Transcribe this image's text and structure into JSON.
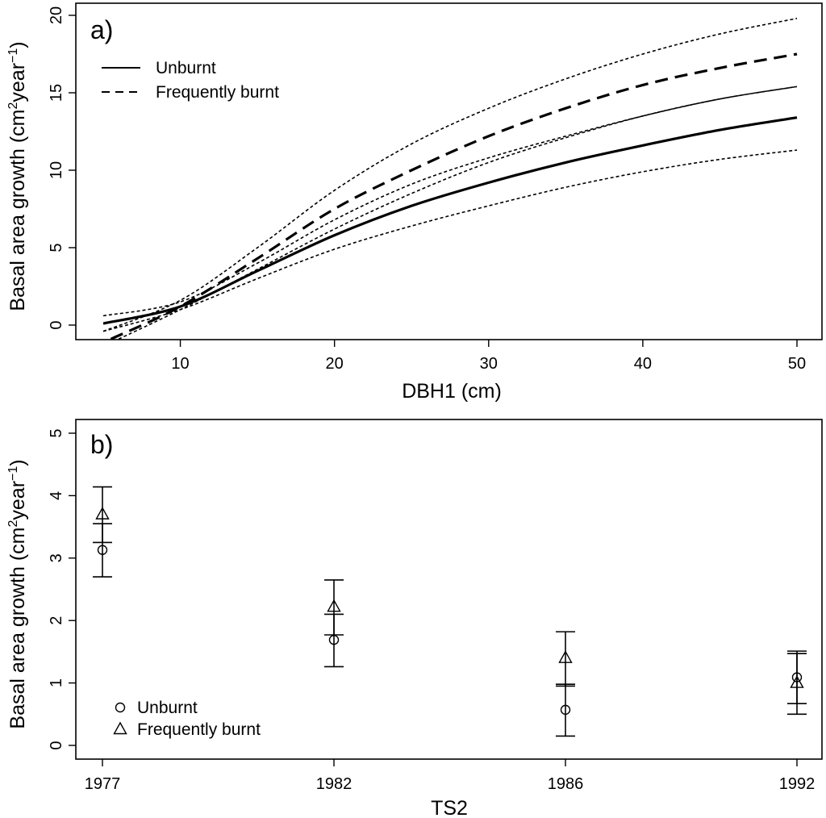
{
  "chart_data": [
    {
      "type": "line",
      "panel_label": "a)",
      "xlabel": "DBH1 (cm)",
      "ylabel": {
        "prefix": "Basal area growth (cm",
        "sup1": "2",
        "mid": "year",
        "sup2": "−1",
        "suffix": ")"
      },
      "xlim": [
        3.5,
        52
      ],
      "ylim": [
        -0.8,
        20.5
      ],
      "xticks": [
        10,
        20,
        30,
        40,
        50
      ],
      "yticks": [
        0,
        5,
        10,
        15,
        20
      ],
      "legend": {
        "position": "top-left",
        "entries": [
          {
            "label": "Unburnt",
            "style": "solid"
          },
          {
            "label": "Frequently burnt",
            "style": "dashed"
          }
        ]
      },
      "series": [
        {
          "name": "Unburnt",
          "role": "fit",
          "style": "solid",
          "x": [
            5,
            10,
            15,
            20,
            25,
            30,
            35,
            40,
            45,
            50
          ],
          "y": [
            0.1,
            1.2,
            3.5,
            5.8,
            7.7,
            9.2,
            10.5,
            11.6,
            12.6,
            13.4
          ]
        },
        {
          "name": "Unburnt lower CI",
          "role": "ci",
          "style": "dotted",
          "x": [
            5,
            10,
            15,
            20,
            25,
            30,
            35,
            40,
            45,
            50
          ],
          "y": [
            -0.4,
            1.0,
            3.0,
            4.9,
            6.4,
            7.7,
            8.9,
            9.9,
            10.7,
            11.3
          ]
        },
        {
          "name": "Unburnt upper CI",
          "role": "ci",
          "style": "dotted",
          "x": [
            5,
            10,
            15,
            20,
            25,
            30,
            35,
            40,
            45,
            50
          ],
          "y": [
            0.6,
            1.5,
            4.0,
            6.8,
            9.1,
            10.8,
            12.2,
            13.5,
            14.6,
            15.4
          ]
        },
        {
          "name": "Frequently burnt",
          "role": "fit",
          "style": "dashed",
          "x": [
            5.5,
            10,
            15,
            20,
            25,
            30,
            35,
            40,
            45,
            50
          ],
          "y": [
            -0.9,
            1.2,
            4.3,
            7.5,
            10.0,
            12.2,
            14.0,
            15.5,
            16.6,
            17.5
          ]
        },
        {
          "name": "Frequently burnt lower CI",
          "role": "ci",
          "style": "dotted",
          "x": [
            6,
            10,
            15,
            20,
            25,
            30,
            35,
            40,
            45,
            50
          ],
          "y": [
            -0.9,
            1.0,
            3.6,
            6.2,
            8.5,
            10.5,
            12.1,
            13.5,
            14.6,
            15.4
          ]
        },
        {
          "name": "Frequently burnt upper CI",
          "role": "ci",
          "style": "dotted",
          "x": [
            5,
            10,
            15,
            20,
            25,
            30,
            35,
            40,
            45,
            50
          ],
          "y": [
            -0.4,
            1.6,
            5.0,
            8.7,
            11.7,
            14.0,
            15.9,
            17.5,
            18.8,
            19.8
          ]
        }
      ]
    },
    {
      "type": "scatter",
      "panel_label": "b)",
      "xlabel": "TS2",
      "ylabel": {
        "prefix": "Basal area growth (cm",
        "sup1": "2",
        "mid": "year",
        "sup2": "−1",
        "suffix": ")"
      },
      "categories": [
        "1977",
        "1982",
        "1986",
        "1992"
      ],
      "ylim": [
        -0.05,
        5.2
      ],
      "yticks": [
        0,
        1,
        2,
        3,
        4,
        5
      ],
      "legend": {
        "position": "bottom-left",
        "entries": [
          {
            "label": "Unburnt",
            "marker": "circle"
          },
          {
            "label": "Frequently burnt",
            "marker": "triangle"
          }
        ]
      },
      "series": [
        {
          "name": "Unburnt",
          "marker": "circle",
          "values": [
            3.13,
            1.69,
            0.57,
            1.09
          ],
          "lower": [
            2.7,
            1.26,
            0.15,
            0.67
          ],
          "upper": [
            3.55,
            2.1,
            0.98,
            1.51
          ]
        },
        {
          "name": "Frequently burnt",
          "marker": "triangle",
          "values": [
            3.7,
            2.22,
            1.4,
            1.0
          ],
          "lower": [
            3.25,
            1.77,
            0.95,
            0.5
          ],
          "upper": [
            4.14,
            2.65,
            1.82,
            1.47
          ]
        }
      ]
    }
  ]
}
